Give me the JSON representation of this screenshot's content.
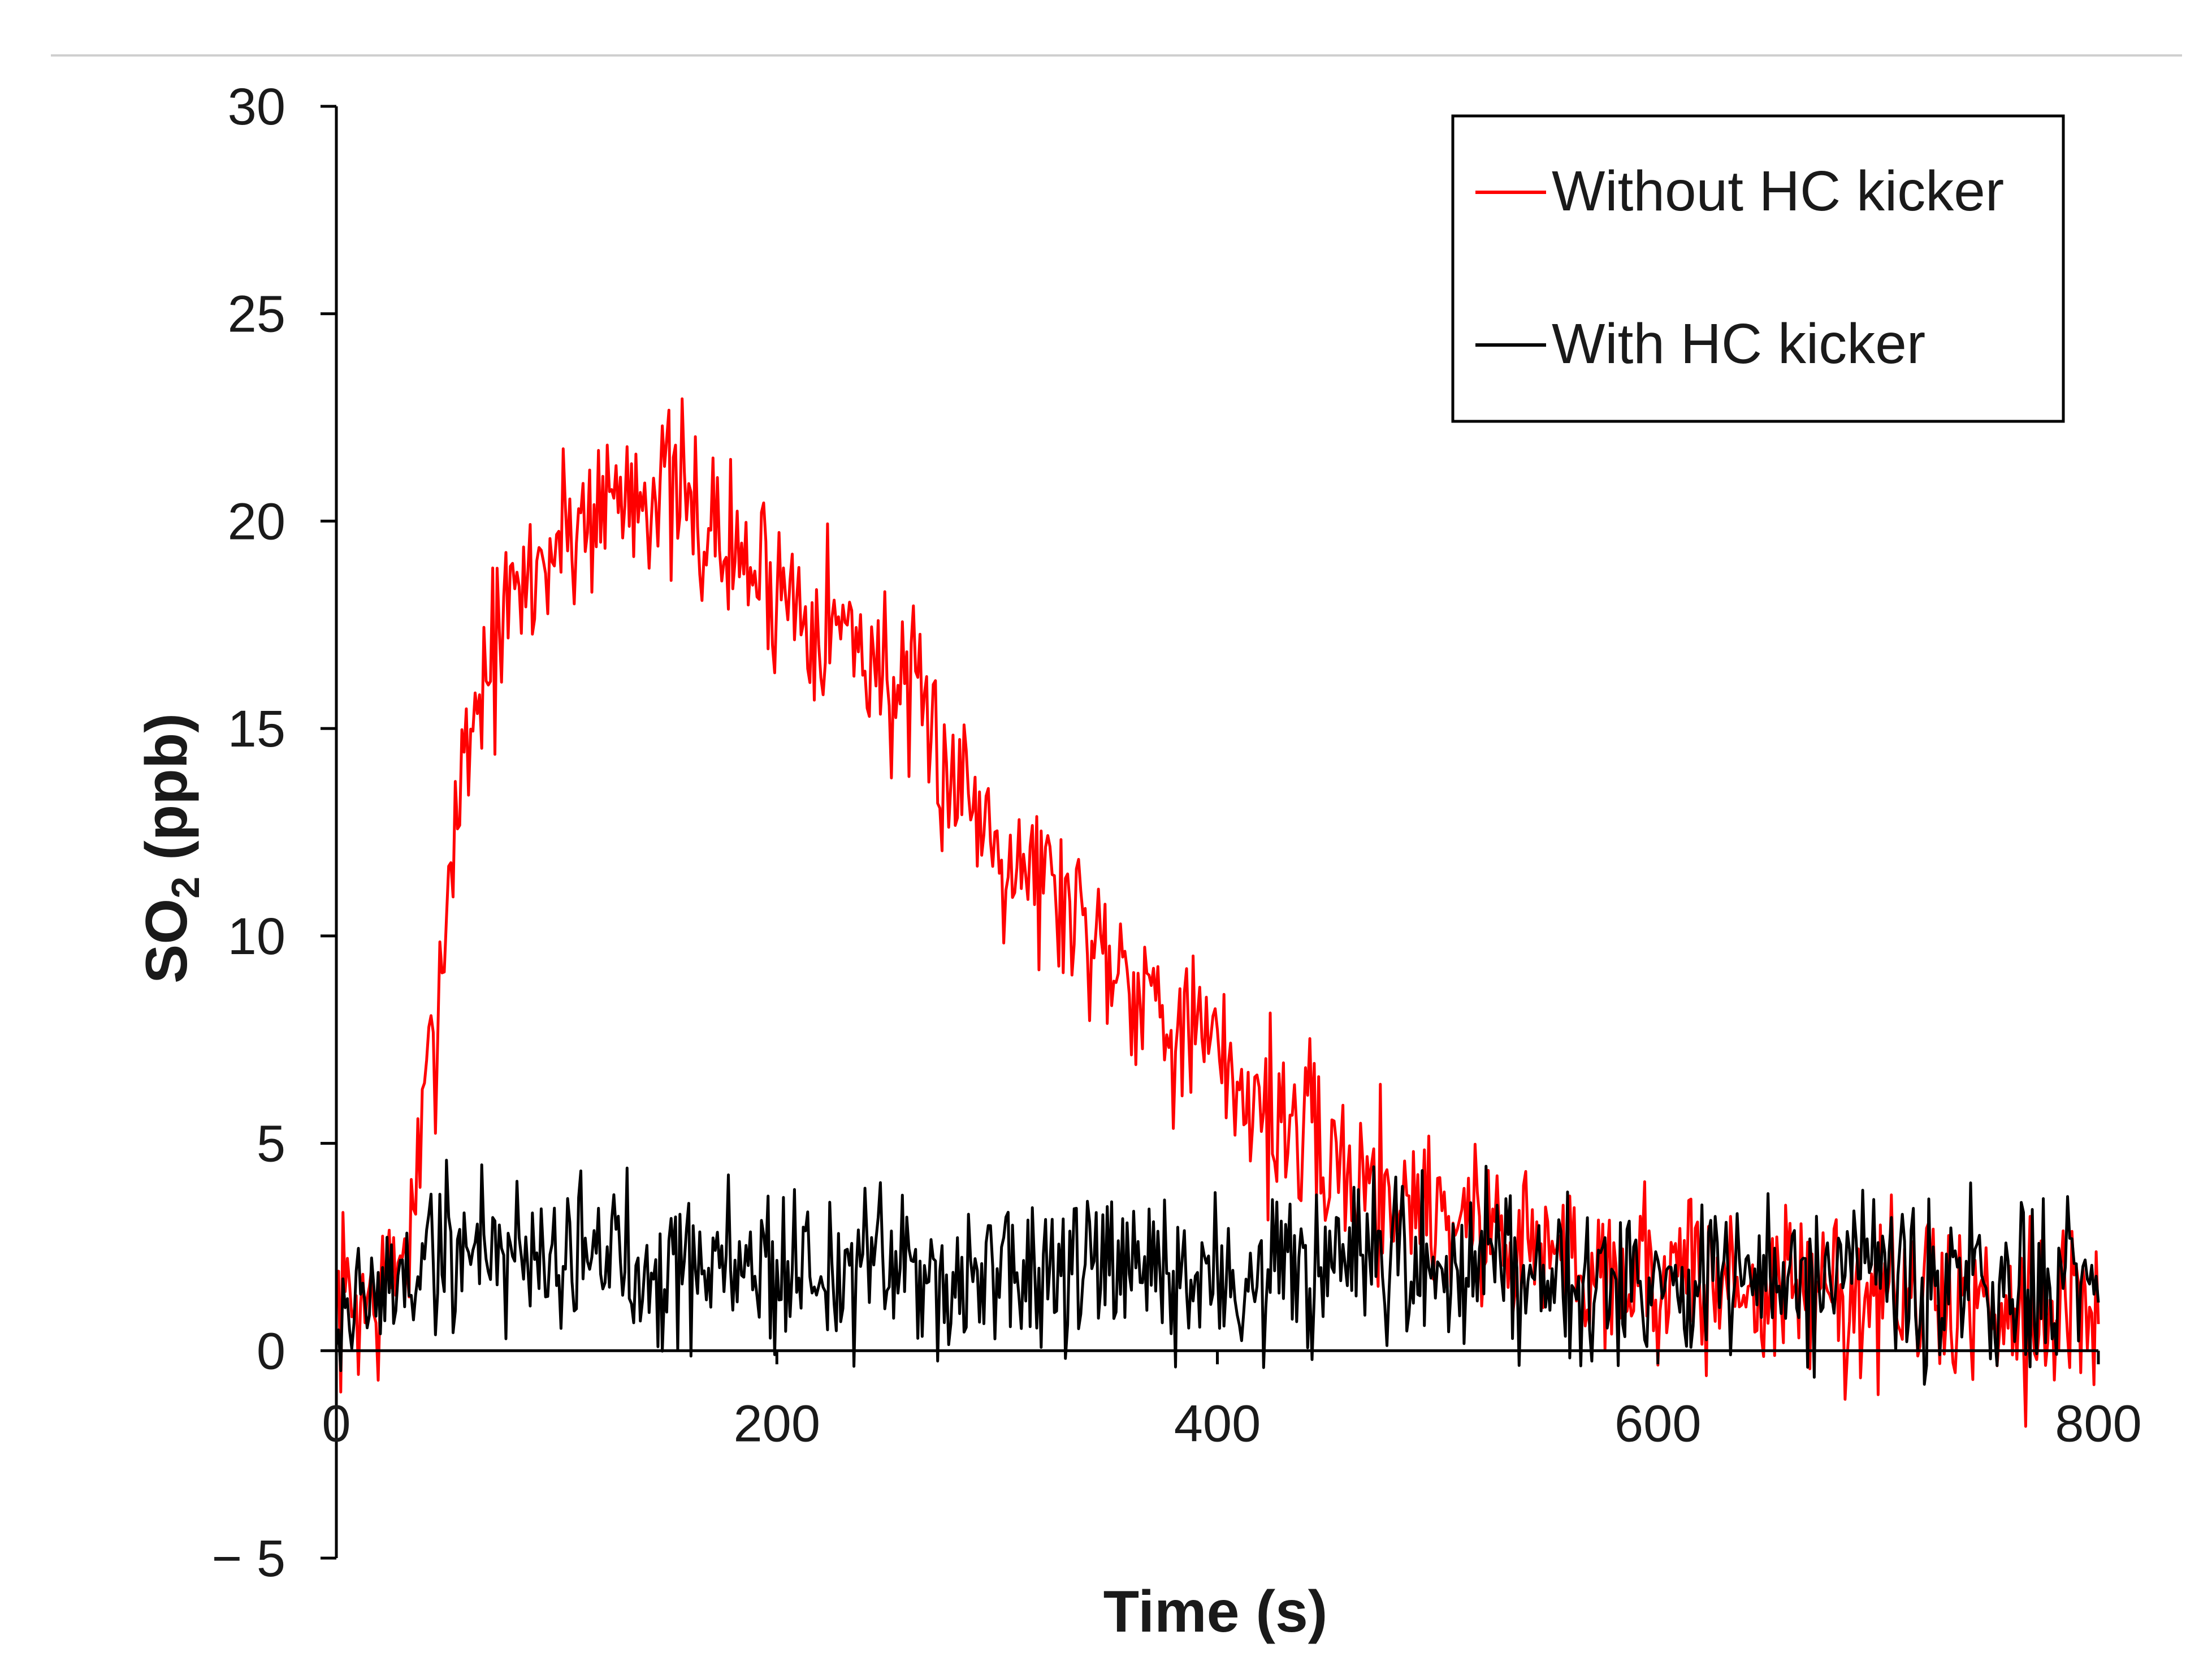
{
  "chart_data": {
    "type": "line",
    "title": "",
    "xlabel": "Time (s)",
    "ylabel_main": "SO",
    "ylabel_sub": "2",
    "ylabel_unit": " (ppb)",
    "xlim": [
      0,
      800
    ],
    "ylim": [
      -5,
      30
    ],
    "x_ticks": [
      0,
      200,
      400,
      600,
      800
    ],
    "y_ticks": [
      -5,
      0,
      5,
      10,
      15,
      20,
      25,
      30
    ],
    "x_tick_labels": [
      "0",
      "200",
      "400",
      "600",
      "800"
    ],
    "y_tick_labels": [
      "− 5",
      "0",
      "5",
      "10",
      "15",
      "20",
      "25",
      "30"
    ],
    "grid": false,
    "legend_position": "top-right",
    "x_step": 1,
    "series": [
      {
        "name": "Without HC kicker",
        "color": "#ff0000",
        "noise": 1.6,
        "seed": 7,
        "envelope": [
          [
            0,
            1.2
          ],
          [
            20,
            1.2
          ],
          [
            35,
            3.0
          ],
          [
            45,
            8.0
          ],
          [
            55,
            13.5
          ],
          [
            65,
            16.0
          ],
          [
            80,
            18.0
          ],
          [
            100,
            19.5
          ],
          [
            120,
            20.5
          ],
          [
            140,
            21.0
          ],
          [
            160,
            20.3
          ],
          [
            180,
            19.2
          ],
          [
            200,
            18.5
          ],
          [
            220,
            17.8
          ],
          [
            240,
            17.0
          ],
          [
            260,
            15.5
          ],
          [
            280,
            14.0
          ],
          [
            300,
            12.5
          ],
          [
            320,
            11.5
          ],
          [
            340,
            10.3
          ],
          [
            360,
            9.3
          ],
          [
            380,
            8.0
          ],
          [
            400,
            7.0
          ],
          [
            420,
            6.0
          ],
          [
            440,
            5.0
          ],
          [
            460,
            4.3
          ],
          [
            480,
            3.8
          ],
          [
            500,
            3.5
          ],
          [
            520,
            3.0
          ],
          [
            540,
            2.6
          ],
          [
            560,
            2.3
          ],
          [
            580,
            2.0
          ],
          [
            600,
            1.8
          ],
          [
            650,
            1.5
          ],
          [
            700,
            1.3
          ],
          [
            750,
            1.2
          ],
          [
            800,
            1.0
          ]
        ]
      },
      {
        "name": "With HC kicker",
        "color": "#000000",
        "noise": 1.5,
        "seed": 19,
        "envelope": [
          [
            0,
            1.0
          ],
          [
            20,
            1.3
          ],
          [
            40,
            2.2
          ],
          [
            60,
            2.5
          ],
          [
            100,
            2.4
          ],
          [
            150,
            2.2
          ],
          [
            200,
            2.0
          ],
          [
            300,
            1.8
          ],
          [
            400,
            1.7
          ],
          [
            500,
            1.9
          ],
          [
            520,
            2.4
          ],
          [
            560,
            2.0
          ],
          [
            600,
            1.7
          ],
          [
            700,
            1.6
          ],
          [
            800,
            1.4
          ]
        ]
      }
    ]
  }
}
